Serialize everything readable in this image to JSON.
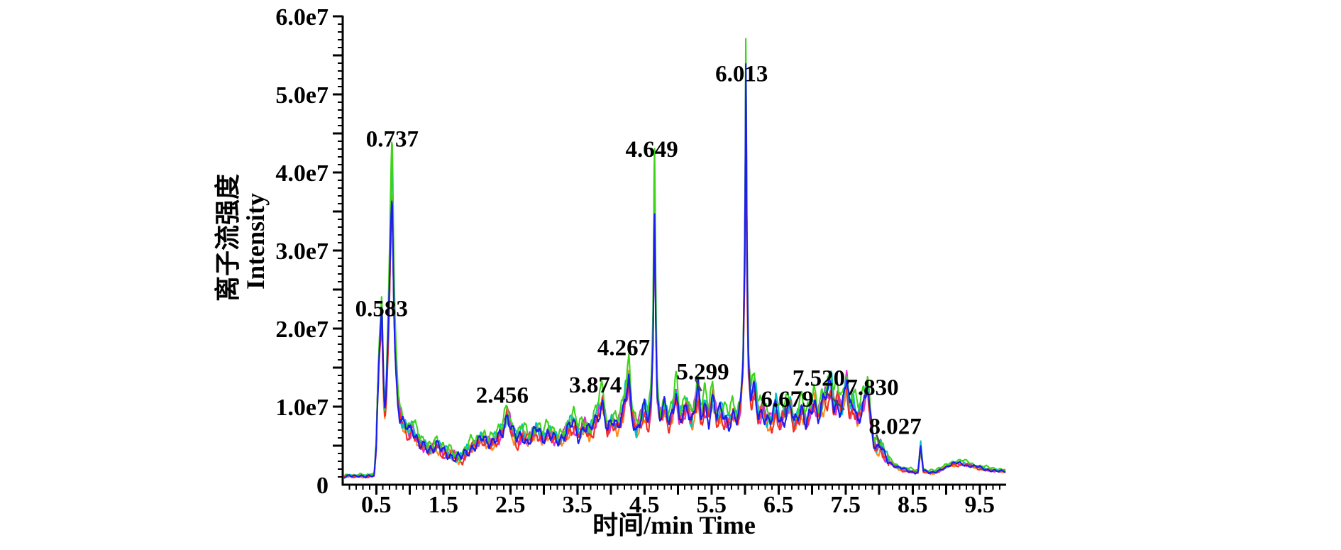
{
  "chart_data": {
    "type": "line",
    "title": "",
    "xlabel": "时间/min  Time",
    "ylabel_lines": [
      "离子流强度",
      "Intensity"
    ],
    "xlim": [
      0,
      9.9
    ],
    "ylim": [
      0,
      60000000
    ],
    "unit_scale": 10000000,
    "grid": false,
    "legend": "none",
    "x_tick_labels": [
      "0.5",
      "1.5",
      "2.5",
      "3.5",
      "4.5",
      "5.5",
      "6.5",
      "7.5",
      "8.5",
      "9.5"
    ],
    "x_label_values": [
      0.5,
      1.5,
      2.5,
      3.5,
      4.5,
      5.5,
      6.5,
      7.5,
      8.5,
      9.5
    ],
    "x_major_step": 0.5,
    "x_minor_step": 0.1,
    "y_tick_labels": [
      "0",
      "1.0e7",
      "2.0e7",
      "3.0e7",
      "4.0e7",
      "5.0e7",
      "6.0e7"
    ],
    "y_label_values": [
      0,
      1,
      2,
      3,
      4,
      5,
      6
    ],
    "y_major_step": 0.5,
    "y_minor_step": 0.1,
    "axis_color": "#000000",
    "leader_color": "#4a4a4a",
    "series": [
      {
        "name": "overlay-trace-orange",
        "color": "#ff8c1a",
        "scale": 0.86,
        "seed": 6
      },
      {
        "name": "overlay-trace-magenta",
        "color": "#e02fd4",
        "scale": 0.88,
        "seed": 5
      },
      {
        "name": "overlay-trace-cyan",
        "color": "#00c2c6",
        "scale": 0.92,
        "seed": 4
      },
      {
        "name": "overlay-trace-red",
        "color": "#f03024",
        "scale": 0.85,
        "seed": 3
      },
      {
        "name": "overlay-trace-green",
        "color": "#3fd31c",
        "scale": 1.0,
        "seed": 1
      },
      {
        "name": "overlay-trace-blue",
        "color": "#1c1cf0",
        "scale": 0.88,
        "seed": 2
      }
    ],
    "base_trace": [
      [
        0.02,
        0.12
      ],
      [
        0.1,
        0.13
      ],
      [
        0.18,
        0.12
      ],
      [
        0.26,
        0.13
      ],
      [
        0.34,
        0.12
      ],
      [
        0.42,
        0.13
      ],
      [
        0.47,
        0.14
      ],
      [
        0.5,
        0.55
      ],
      [
        0.52,
        1.3
      ],
      [
        0.545,
        1.9
      ],
      [
        0.565,
        2.2
      ],
      [
        0.583,
        2.52
      ],
      [
        0.6,
        1.8
      ],
      [
        0.615,
        1.25
      ],
      [
        0.63,
        1.05
      ],
      [
        0.655,
        1.5
      ],
      [
        0.68,
        2.2
      ],
      [
        0.7,
        3.0
      ],
      [
        0.72,
        3.9
      ],
      [
        0.737,
        4.38
      ],
      [
        0.75,
        3.6
      ],
      [
        0.765,
        2.6
      ],
      [
        0.78,
        2.05
      ],
      [
        0.8,
        1.6
      ],
      [
        0.82,
        1.3
      ],
      [
        0.85,
        1.05
      ],
      [
        0.88,
        0.92
      ],
      [
        0.92,
        0.85
      ],
      [
        0.96,
        0.8
      ],
      [
        1.0,
        0.74
      ],
      [
        1.04,
        0.82
      ],
      [
        1.08,
        0.72
      ],
      [
        1.12,
        0.66
      ],
      [
        1.16,
        0.6
      ],
      [
        1.22,
        0.56
      ],
      [
        1.28,
        0.5
      ],
      [
        1.34,
        0.52
      ],
      [
        1.4,
        0.58
      ],
      [
        1.46,
        0.52
      ],
      [
        1.52,
        0.47
      ],
      [
        1.6,
        0.44
      ],
      [
        1.68,
        0.4
      ],
      [
        1.76,
        0.38
      ],
      [
        1.84,
        0.46
      ],
      [
        1.92,
        0.55
      ],
      [
        2.0,
        0.6
      ],
      [
        2.08,
        0.68
      ],
      [
        2.14,
        0.62
      ],
      [
        2.22,
        0.6
      ],
      [
        2.3,
        0.68
      ],
      [
        2.38,
        0.78
      ],
      [
        2.456,
        1.02
      ],
      [
        2.52,
        0.78
      ],
      [
        2.6,
        0.64
      ],
      [
        2.68,
        0.74
      ],
      [
        2.76,
        0.64
      ],
      [
        2.84,
        0.72
      ],
      [
        2.9,
        0.8
      ],
      [
        2.98,
        0.66
      ],
      [
        3.06,
        0.76
      ],
      [
        3.14,
        0.7
      ],
      [
        3.22,
        0.63
      ],
      [
        3.3,
        0.7
      ],
      [
        3.38,
        0.82
      ],
      [
        3.44,
        0.92
      ],
      [
        3.52,
        0.72
      ],
      [
        3.6,
        0.86
      ],
      [
        3.68,
        0.74
      ],
      [
        3.78,
        0.95
      ],
      [
        3.874,
        1.22
      ],
      [
        3.95,
        0.78
      ],
      [
        4.02,
        0.92
      ],
      [
        4.1,
        0.84
      ],
      [
        4.18,
        1.05
      ],
      [
        4.23,
        1.35
      ],
      [
        4.267,
        1.58
      ],
      [
        4.31,
        1.05
      ],
      [
        4.38,
        0.78
      ],
      [
        4.45,
        0.95
      ],
      [
        4.5,
        1.08
      ],
      [
        4.56,
        0.92
      ],
      [
        4.6,
        1.2
      ],
      [
        4.63,
        2.2
      ],
      [
        4.649,
        4.45
      ],
      [
        4.67,
        2.4
      ],
      [
        4.69,
        1.3
      ],
      [
        4.73,
        0.98
      ],
      [
        4.8,
        1.12
      ],
      [
        4.87,
        0.88
      ],
      [
        4.93,
        1.1
      ],
      [
        4.97,
        1.38
      ],
      [
        5.02,
        0.95
      ],
      [
        5.08,
        1.05
      ],
      [
        5.14,
        1.15
      ],
      [
        5.2,
        0.9
      ],
      [
        5.25,
        1.1
      ],
      [
        5.299,
        1.38
      ],
      [
        5.34,
        0.95
      ],
      [
        5.4,
        1.18
      ],
      [
        5.46,
        0.98
      ],
      [
        5.52,
        1.3
      ],
      [
        5.58,
        0.95
      ],
      [
        5.64,
        1.05
      ],
      [
        5.7,
        0.95
      ],
      [
        5.76,
        0.9
      ],
      [
        5.82,
        1.05
      ],
      [
        5.88,
        0.95
      ],
      [
        5.93,
        1.1
      ],
      [
        5.97,
        1.7
      ],
      [
        6.0,
        3.5
      ],
      [
        6.013,
        6.05
      ],
      [
        6.03,
        3.2
      ],
      [
        6.05,
        1.75
      ],
      [
        6.09,
        1.25
      ],
      [
        6.14,
        1.4
      ],
      [
        6.2,
        1.0
      ],
      [
        6.26,
        1.1
      ],
      [
        6.32,
        0.95
      ],
      [
        6.4,
        0.9
      ],
      [
        6.46,
        1.12
      ],
      [
        6.52,
        0.92
      ],
      [
        6.58,
        1.0
      ],
      [
        6.62,
        1.08
      ],
      [
        6.679,
        1.18
      ],
      [
        6.73,
        0.85
      ],
      [
        6.79,
        0.98
      ],
      [
        6.85,
        1.1
      ],
      [
        6.91,
        0.9
      ],
      [
        6.97,
        1.05
      ],
      [
        7.03,
        1.22
      ],
      [
        7.09,
        0.98
      ],
      [
        7.15,
        1.18
      ],
      [
        7.22,
        1.3
      ],
      [
        7.28,
        1.42
      ],
      [
        7.33,
        1.12
      ],
      [
        7.38,
        1.25
      ],
      [
        7.44,
        1.1
      ],
      [
        7.48,
        1.3
      ],
      [
        7.52,
        1.52
      ],
      [
        7.56,
        1.05
      ],
      [
        7.62,
        1.18
      ],
      [
        7.68,
        0.95
      ],
      [
        7.74,
        1.12
      ],
      [
        7.79,
        1.25
      ],
      [
        7.83,
        1.45
      ],
      [
        7.87,
        0.95
      ],
      [
        7.92,
        0.6
      ],
      [
        7.97,
        0.52
      ],
      [
        8.027,
        0.58
      ],
      [
        8.08,
        0.42
      ],
      [
        8.14,
        0.35
      ],
      [
        8.22,
        0.28
      ],
      [
        8.3,
        0.24
      ],
      [
        8.4,
        0.21
      ],
      [
        8.5,
        0.19
      ],
      [
        8.58,
        0.18
      ],
      [
        8.62,
        0.55
      ],
      [
        8.66,
        0.2
      ],
      [
        8.74,
        0.18
      ],
      [
        8.82,
        0.18
      ],
      [
        8.9,
        0.21
      ],
      [
        9.0,
        0.26
      ],
      [
        9.1,
        0.3
      ],
      [
        9.2,
        0.31
      ],
      [
        9.32,
        0.29
      ],
      [
        9.44,
        0.26
      ],
      [
        9.56,
        0.23
      ],
      [
        9.68,
        0.21
      ],
      [
        9.8,
        0.2
      ],
      [
        9.89,
        0.195
      ]
    ],
    "peak_labels": [
      {
        "text": "0.583",
        "t": 0.58,
        "v": 2.26
      },
      {
        "text": "0.737",
        "t": 0.74,
        "v": 4.43
      },
      {
        "text": "2.456",
        "t": 2.38,
        "v": 1.15
      },
      {
        "text": "3.874",
        "t": 3.77,
        "v": 1.28
      },
      {
        "text": "4.267",
        "t": 4.19,
        "v": 1.76
      },
      {
        "text": "4.649",
        "t": 4.61,
        "v": 4.3
      },
      {
        "text": "5.299",
        "t": 5.37,
        "v": 1.45,
        "leader": [
          [
            5.26,
            1.35
          ],
          [
            5.35,
            1.2
          ]
        ]
      },
      {
        "text": "6.013",
        "t": 5.95,
        "v": 5.27
      },
      {
        "text": "6.679",
        "t": 6.63,
        "v": 1.1,
        "leader": [
          [
            6.6,
            1.0
          ],
          [
            6.6,
            0.86
          ]
        ]
      },
      {
        "text": "7.520",
        "t": 7.1,
        "v": 1.37,
        "leader": [
          [
            7.2,
            1.19
          ],
          [
            7.48,
            0.96
          ]
        ]
      },
      {
        "text": "7.830",
        "t": 7.9,
        "v": 1.25
      },
      {
        "text": "8.027",
        "t": 8.24,
        "v": 0.75,
        "leader": [
          [
            7.96,
            0.64
          ],
          [
            8.01,
            0.53
          ]
        ]
      }
    ]
  }
}
